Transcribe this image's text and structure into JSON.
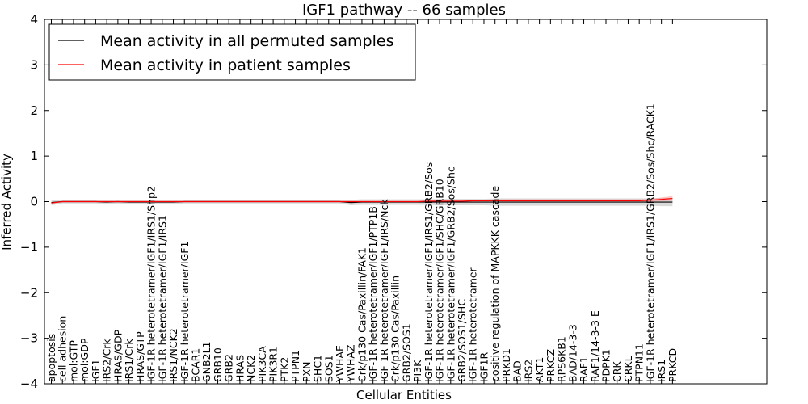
{
  "chart_data": {
    "type": "line",
    "title": "IGF1 pathway -- 66 samples",
    "xlabel": "Cellular Entities",
    "ylabel": "Inferred Activity",
    "ylim": [
      -4,
      4
    ],
    "yticks": [
      4,
      3,
      2,
      1,
      0,
      -1,
      -2,
      -3,
      -4
    ],
    "ytick_labels": [
      "4",
      "3",
      "2",
      "1",
      "0",
      "−1",
      "−2",
      "−3",
      "−4"
    ],
    "legend_position": "top-left",
    "categories": [
      "apoptosis",
      "cell adhesion",
      "mol:GTP",
      "mol:GDP",
      "IGF1",
      "IRS2/Crk",
      "HRAS/GDP",
      "IRS1/Crk",
      "HRAS/GTP",
      "IGF-1R heterotetramer/IGF1/IRS1/Shp2",
      "IGF-1R heterotetramer/IGF1/IRS1",
      "IRS1/NCK2",
      "IGF-1R heterotetramer/IGF1",
      "BCAR1",
      "GNB2L1",
      "GRB10",
      "GRB2",
      "HRAS",
      "NCK2",
      "PIK3CA",
      "PIK3R1",
      "PTK2",
      "PTPN1",
      "PXN",
      "SHC1",
      "SOS1",
      "YWHAE",
      "YWHAZ",
      "Crk/p130 Cas/Paxillin/FAK1",
      "IGF-1R heterotetramer/IGF1/PTP1B",
      "IGF-1R heterotetramer/IGF1/IRS/Nck",
      "Crk/p130 Cas/Paxillin",
      "GRB2/SOS1",
      "PI3K",
      "IGF-1R heterotetramer/IGF1/IRS1/GRB2/Sos",
      "IGF-1R heterotetramer/IGF1/SHC/GRB10",
      "IGF-1R heterotetramer/IGF1/GRB2/Sos/Shc",
      "GRB2/SOS1/SHC",
      "IGF-1R heterotetramer",
      "IGF1R",
      "positive regulation of MAPKKK cascade",
      "PRKD1",
      "BAD",
      "IRS2",
      "AKT1",
      "PRKCZ",
      "RPS6KB1",
      "BAD/14-3-3",
      "RAF1",
      "RAF1/14-3-3 E",
      "PDPK1",
      "CRK",
      "CRKL",
      "PTPN11",
      "IGF-1R heterotetramer/IGF1/IRS1/GRB2/Sos/Shc/RACK1",
      "IRS1",
      "PRKCD"
    ],
    "series": [
      {
        "name": "Mean activity in all permuted samples",
        "color": "#000000",
        "values": [
          -0.02,
          0.0,
          0.0,
          0.0,
          0.0,
          -0.01,
          0.0,
          -0.01,
          -0.01,
          -0.01,
          -0.01,
          -0.01,
          0.0,
          0.0,
          0.0,
          0.0,
          0.0,
          0.0,
          0.0,
          0.0,
          0.0,
          0.0,
          0.0,
          0.0,
          0.0,
          0.0,
          0.0,
          -0.02,
          -0.01,
          -0.01,
          -0.01,
          -0.01,
          -0.01,
          -0.01,
          -0.01,
          -0.01,
          -0.01,
          -0.01,
          -0.01,
          -0.01,
          -0.01,
          -0.01,
          -0.01,
          -0.01,
          -0.01,
          -0.01,
          -0.01,
          -0.01,
          -0.01,
          -0.01,
          -0.01,
          -0.01,
          -0.01,
          -0.01,
          -0.01,
          -0.01,
          -0.01
        ],
        "band": [
          0.06,
          0.04,
          0.04,
          0.04,
          0.04,
          0.05,
          0.04,
          0.05,
          0.05,
          0.05,
          0.05,
          0.05,
          0.04,
          0.04,
          0.04,
          0.04,
          0.04,
          0.04,
          0.04,
          0.04,
          0.04,
          0.04,
          0.04,
          0.04,
          0.04,
          0.04,
          0.04,
          0.06,
          0.06,
          0.06,
          0.06,
          0.06,
          0.06,
          0.06,
          0.06,
          0.07,
          0.07,
          0.07,
          0.07,
          0.07,
          0.08,
          0.08,
          0.08,
          0.08,
          0.08,
          0.08,
          0.08,
          0.08,
          0.08,
          0.08,
          0.08,
          0.08,
          0.08,
          0.08,
          0.08,
          0.09,
          0.09
        ]
      },
      {
        "name": "Mean activity in patient samples",
        "color": "#ff0000",
        "values": [
          -0.03,
          0.0,
          0.0,
          0.0,
          0.0,
          0.0,
          0.0,
          0.0,
          0.0,
          0.0,
          0.0,
          0.0,
          0.0,
          0.0,
          0.0,
          0.0,
          0.0,
          0.0,
          0.0,
          0.0,
          0.0,
          0.0,
          0.0,
          0.0,
          0.0,
          0.0,
          0.0,
          0.0,
          0.0,
          0.0,
          0.0,
          0.0,
          0.0,
          0.0,
          0.01,
          0.01,
          0.01,
          0.01,
          0.02,
          0.02,
          0.02,
          0.02,
          0.02,
          0.02,
          0.02,
          0.02,
          0.02,
          0.02,
          0.02,
          0.02,
          0.02,
          0.02,
          0.02,
          0.02,
          0.03,
          0.05,
          0.07
        ],
        "band": [
          0.02,
          0.01,
          0.01,
          0.01,
          0.01,
          0.01,
          0.01,
          0.01,
          0.01,
          0.01,
          0.01,
          0.01,
          0.01,
          0.01,
          0.01,
          0.01,
          0.01,
          0.01,
          0.01,
          0.01,
          0.01,
          0.01,
          0.01,
          0.01,
          0.01,
          0.01,
          0.01,
          0.01,
          0.01,
          0.01,
          0.01,
          0.01,
          0.01,
          0.01,
          0.02,
          0.02,
          0.02,
          0.02,
          0.02,
          0.02,
          0.03,
          0.03,
          0.03,
          0.03,
          0.03,
          0.03,
          0.03,
          0.03,
          0.03,
          0.03,
          0.03,
          0.03,
          0.03,
          0.03,
          0.03,
          0.04,
          0.05
        ]
      }
    ]
  }
}
